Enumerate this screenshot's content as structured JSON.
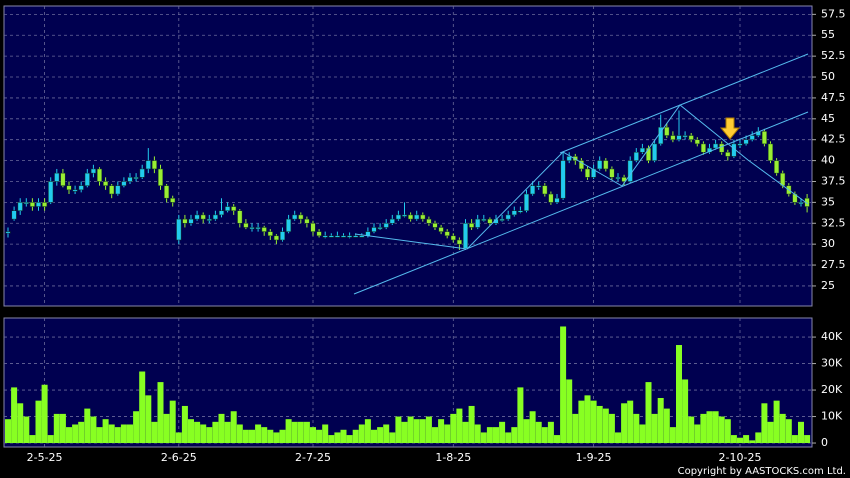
{
  "chart_data": [
    {
      "type": "candlestick",
      "up_color": "#22ccee",
      "down_color": "#99ee33",
      "grid": true,
      "categories": [
        null,
        null,
        null,
        null,
        null,
        null,
        "2-5-25",
        null,
        null,
        null,
        null,
        null,
        null,
        null,
        null,
        null,
        null,
        null,
        null,
        null,
        null,
        null,
        null,
        null,
        null,
        null,
        null,
        null,
        "2-6-25",
        null,
        null,
        null,
        null,
        null,
        null,
        null,
        null,
        null,
        null,
        null,
        null,
        null,
        null,
        null,
        null,
        null,
        null,
        null,
        null,
        null,
        "2-7-25",
        null,
        null,
        null,
        null,
        null,
        null,
        null,
        null,
        null,
        null,
        null,
        null,
        null,
        null,
        null,
        null,
        null,
        null,
        null,
        null,
        null,
        null,
        "1-8-25",
        null,
        null,
        null,
        null,
        null,
        null,
        null,
        null,
        null,
        null,
        null,
        null,
        null,
        null,
        null,
        null,
        null,
        null,
        null,
        null,
        null,
        null,
        "1-9-25",
        null,
        null,
        null,
        null,
        null,
        null,
        null,
        null,
        null,
        null,
        null,
        null,
        null,
        null,
        null,
        null,
        null,
        null,
        null,
        null,
        null,
        null,
        null,
        "2-10-25",
        null,
        null,
        null,
        null,
        null,
        null,
        null,
        null,
        null,
        null,
        null
      ],
      "ohlc": [
        [
          31.5,
          32,
          30.8,
          31.5
        ],
        [
          33,
          34.5,
          32.8,
          34
        ],
        [
          34,
          35.5,
          33.5,
          35
        ],
        [
          35,
          35.5,
          34.5,
          35
        ],
        [
          35,
          35.5,
          34,
          34.5
        ],
        [
          34.5,
          35.5,
          34,
          35
        ],
        [
          35,
          35.5,
          34,
          34.5
        ],
        [
          35,
          38,
          34.8,
          37.5
        ],
        [
          37.5,
          39,
          37,
          38.5
        ],
        [
          38.5,
          39,
          36.8,
          37
        ],
        [
          37,
          37.5,
          36,
          36.5
        ],
        [
          36.5,
          37,
          36,
          36.5
        ],
        [
          36.5,
          37.5,
          36.2,
          37
        ],
        [
          37,
          39,
          36.8,
          38.5
        ],
        [
          38.5,
          39.5,
          38,
          39
        ],
        [
          39,
          39.2,
          37,
          37.5
        ],
        [
          37.5,
          38,
          36.5,
          37
        ],
        [
          37,
          37.2,
          35.5,
          36
        ],
        [
          36,
          37.5,
          35.8,
          37
        ],
        [
          37,
          38,
          36.8,
          37.5
        ],
        [
          37.5,
          38.5,
          37.2,
          38
        ],
        [
          38,
          38.5,
          37.5,
          38
        ],
        [
          38,
          39.5,
          37.8,
          39
        ],
        [
          39,
          41.5,
          38.5,
          40
        ],
        [
          40,
          40.5,
          38.5,
          39
        ],
        [
          39,
          39.5,
          36.5,
          37
        ],
        [
          37,
          37.2,
          35,
          35.5
        ],
        [
          35.5,
          35.8,
          34.5,
          35
        ],
        [
          30.5,
          33.5,
          30,
          33
        ],
        [
          33,
          33.5,
          32,
          32.5
        ],
        [
          32.5,
          33.5,
          32.2,
          33
        ],
        [
          33,
          34,
          32.8,
          33.5
        ],
        [
          33.5,
          33.8,
          32.5,
          33
        ],
        [
          33,
          33.5,
          32.5,
          33
        ],
        [
          33,
          34,
          32.8,
          33.5
        ],
        [
          33.5,
          35.5,
          33.2,
          34
        ],
        [
          34,
          35,
          33.8,
          34.5
        ],
        [
          34.5,
          34.8,
          33.5,
          34
        ],
        [
          34,
          34.2,
          32,
          32.5
        ],
        [
          32.5,
          33,
          31.8,
          32
        ],
        [
          32,
          32.5,
          31.5,
          32
        ],
        [
          32,
          32.5,
          31.5,
          32
        ],
        [
          32,
          32.2,
          31,
          31.5
        ],
        [
          31.5,
          31.8,
          30.5,
          31
        ],
        [
          31,
          31.2,
          30,
          30.5
        ],
        [
          30.5,
          32,
          30.3,
          31.5
        ],
        [
          31.5,
          33.5,
          31.3,
          33
        ],
        [
          33,
          34,
          32.8,
          33.5
        ],
        [
          33.5,
          33.8,
          32.5,
          33
        ],
        [
          33,
          33.3,
          32,
          32.5
        ],
        [
          32.5,
          32.8,
          31,
          31.5
        ],
        [
          31.5,
          31.8,
          30.8,
          31
        ],
        [
          31,
          31.5,
          30.7,
          31
        ],
        [
          31,
          31.3,
          30.8,
          31
        ],
        [
          31,
          31.5,
          30.8,
          31
        ],
        [
          31,
          31.3,
          30.8,
          31
        ],
        [
          31,
          31.4,
          30.7,
          31
        ],
        [
          31,
          31.3,
          30.8,
          31
        ],
        [
          31,
          31.3,
          30.8,
          31
        ],
        [
          31,
          32,
          30.8,
          31.5
        ],
        [
          31.5,
          32.5,
          31.3,
          32
        ],
        [
          32,
          32.5,
          31.7,
          32
        ],
        [
          32,
          33,
          31.8,
          32.5
        ],
        [
          32.5,
          33.5,
          32.3,
          33
        ],
        [
          33,
          34,
          32.8,
          33.5
        ],
        [
          33.5,
          35,
          33.2,
          33.5
        ],
        [
          33.5,
          33.8,
          32.7,
          33
        ],
        [
          33,
          34,
          32.8,
          33.5
        ],
        [
          33.5,
          33.8,
          32.7,
          33
        ],
        [
          33,
          33.3,
          32.2,
          32.5
        ],
        [
          32.5,
          32.8,
          31.7,
          32
        ],
        [
          32,
          32.3,
          31.2,
          31.5
        ],
        [
          31.5,
          31.8,
          30.7,
          31
        ],
        [
          31,
          31.3,
          30.2,
          30.5
        ],
        [
          30.5,
          30.8,
          29.3,
          30
        ],
        [
          29.5,
          33,
          29.3,
          32.5
        ],
        [
          32.5,
          33,
          31.7,
          32
        ],
        [
          32,
          33.5,
          31.8,
          33
        ],
        [
          33,
          33.5,
          32.7,
          33
        ],
        [
          33,
          33.2,
          32.2,
          32.5
        ],
        [
          32.5,
          33.5,
          32.3,
          33
        ],
        [
          33,
          33.5,
          32.7,
          33
        ],
        [
          33,
          34,
          32.8,
          33.5
        ],
        [
          33.5,
          34.5,
          33.3,
          34
        ],
        [
          34,
          34.5,
          33.7,
          34
        ],
        [
          34,
          36.5,
          33.8,
          36
        ],
        [
          36,
          37.5,
          35.8,
          37
        ],
        [
          37,
          37.5,
          36.5,
          37
        ],
        [
          37,
          37.3,
          35.7,
          36
        ],
        [
          36,
          36.3,
          34.7,
          35
        ],
        [
          35,
          36,
          34.8,
          35.5
        ],
        [
          35.5,
          41,
          35.3,
          40
        ],
        [
          40,
          41,
          39.7,
          40.5
        ],
        [
          40.5,
          40.8,
          39.5,
          40
        ],
        [
          40,
          40.3,
          38.7,
          39
        ],
        [
          39,
          39.3,
          37.7,
          38
        ],
        [
          38,
          39.5,
          37.8,
          39
        ],
        [
          39,
          40.5,
          38.8,
          40
        ],
        [
          40,
          40.3,
          38.7,
          39
        ],
        [
          39,
          39.3,
          37.7,
          38
        ],
        [
          38,
          38.5,
          37.5,
          38
        ],
        [
          38,
          38.3,
          37,
          37.5
        ],
        [
          37.5,
          40.5,
          37.3,
          40
        ],
        [
          40,
          41.5,
          39.8,
          41
        ],
        [
          41,
          42,
          40.8,
          41.5
        ],
        [
          41.5,
          41.8,
          39.7,
          40
        ],
        [
          40,
          42.5,
          39.8,
          42
        ],
        [
          42,
          45.5,
          41.8,
          44
        ],
        [
          44,
          44.5,
          42.7,
          43
        ],
        [
          43,
          43.5,
          42.2,
          42.5
        ],
        [
          42.5,
          46,
          42.3,
          43
        ],
        [
          43,
          43.5,
          42.5,
          43
        ],
        [
          43,
          43.3,
          42.2,
          42.5
        ],
        [
          42.5,
          42.8,
          41.7,
          42
        ],
        [
          42,
          42.3,
          40.7,
          41
        ],
        [
          41,
          42,
          40.8,
          41.5
        ],
        [
          41.5,
          42.5,
          41.3,
          42
        ],
        [
          42,
          42.3,
          40.7,
          41
        ],
        [
          41,
          41.3,
          40,
          40.5
        ],
        [
          40.5,
          42.5,
          40.3,
          42
        ],
        [
          42,
          42.5,
          41.5,
          42
        ],
        [
          42,
          43,
          41.8,
          42.5
        ],
        [
          42.5,
          43.5,
          42.3,
          43
        ],
        [
          43,
          44,
          42.8,
          43.5
        ],
        [
          43.5,
          43.8,
          41.7,
          42
        ],
        [
          42,
          42.3,
          39.7,
          40
        ],
        [
          40,
          40.3,
          38.2,
          38.5
        ],
        [
          38.5,
          38.8,
          36.7,
          37
        ],
        [
          37,
          37.3,
          35.7,
          36
        ],
        [
          36,
          36.3,
          34.7,
          35
        ],
        [
          35,
          35.5,
          34.5,
          35
        ],
        [
          35.5,
          36,
          33.8,
          34.5
        ]
      ],
      "ylim": [
        22.6,
        58.5
      ],
      "yticks": [
        25,
        27.5,
        30,
        32.5,
        35,
        37.5,
        40,
        42.5,
        45,
        47.5,
        50,
        52.5,
        55,
        57.5
      ]
    },
    {
      "type": "bar",
      "color": "#88ff22",
      "grid": true,
      "values": [
        9000,
        21000,
        15000,
        10000,
        3000,
        16000,
        22000,
        3000,
        11000,
        11000,
        6000,
        7000,
        8000,
        13000,
        10000,
        6000,
        9000,
        7000,
        6000,
        7000,
        7000,
        12000,
        27000,
        18000,
        8000,
        23000,
        11000,
        16000,
        4000,
        14000,
        9000,
        8000,
        7000,
        6000,
        8000,
        11000,
        8000,
        12000,
        7000,
        5000,
        5000,
        7000,
        6000,
        5000,
        4000,
        5000,
        9000,
        8000,
        8000,
        8000,
        6000,
        5000,
        7000,
        3000,
        4000,
        5000,
        3000,
        5000,
        7000,
        9000,
        5000,
        6000,
        7000,
        4000,
        10000,
        8000,
        10000,
        9000,
        9000,
        10000,
        6000,
        9000,
        7000,
        11000,
        13000,
        8000,
        14000,
        7000,
        4000,
        6000,
        6000,
        8000,
        4000,
        6000,
        21000,
        9000,
        12000,
        8000,
        6000,
        8000,
        3000,
        44000,
        24000,
        11000,
        16000,
        18000,
        16000,
        14000,
        13000,
        11000,
        4000,
        15000,
        16000,
        11000,
        7000,
        23000,
        11000,
        17000,
        13000,
        6000,
        37000,
        24000,
        10000,
        7000,
        11000,
        12000,
        12000,
        10000,
        9000,
        3000,
        2000,
        3000,
        1000,
        4000,
        15000,
        8000,
        16000,
        11000,
        9000,
        3000,
        8000,
        3000
      ],
      "ylim": [
        -1500,
        47200
      ],
      "yticks": [
        0,
        {
          "value": 10000,
          "label": "10K"
        },
        {
          "value": 20000,
          "label": "20K"
        },
        {
          "value": 30000,
          "label": "30K"
        },
        {
          "value": 40000,
          "label": "40K"
        }
      ]
    }
  ],
  "footer": "Copyright by AASTOCKS.com Ltd."
}
